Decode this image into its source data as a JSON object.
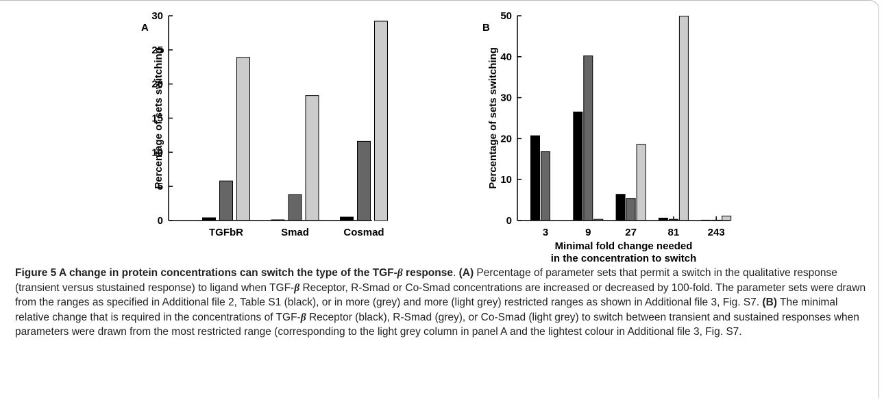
{
  "chart_data": [
    {
      "type": "bar",
      "panel": "A",
      "ylabel": "Percentage of sets switching",
      "categories": [
        "TGFbR",
        "Smad",
        "Cosmad"
      ],
      "series": [
        {
          "color": "#000000",
          "values": [
            0.4,
            0.1,
            0.5
          ]
        },
        {
          "color": "#666666",
          "values": [
            5.8,
            3.8,
            11.6
          ]
        },
        {
          "color": "#cccccc",
          "values": [
            23.9,
            18.3,
            29.2
          ]
        }
      ],
      "ylim": [
        0,
        30
      ],
      "yticks": [
        0,
        5,
        10,
        15,
        20,
        25,
        30
      ]
    },
    {
      "type": "bar",
      "panel": "B",
      "ylabel": "Percentage of sets switching",
      "xlabel": [
        "Minimal fold change needed",
        "in the concentration to switch"
      ],
      "categories": [
        "3",
        "9",
        "27",
        "81",
        "243"
      ],
      "series": [
        {
          "color": "#000000",
          "values": [
            20.7,
            26.5,
            6.4,
            0.6,
            0.1
          ]
        },
        {
          "color": "#666666",
          "values": [
            16.8,
            40.2,
            5.4,
            0.3,
            0.1
          ]
        },
        {
          "color": "#cccccc",
          "values": [
            0,
            0.3,
            18.6,
            49.9,
            1.1
          ]
        }
      ],
      "ylim": [
        0,
        50
      ],
      "yticks": [
        0,
        10,
        20,
        30,
        40,
        50
      ]
    }
  ],
  "caption": [
    "Figure 5 A change in protein concentrations can switch the type of the TGF-",
    "β",
    " response",
    ". ",
    "(A)",
    " Percentage of parameter sets that permit a switch in the qualitative response (transient versus stustained response) to ligand when TGF-",
    "β",
    " Receptor, R-Smad or Co-Smad concentrations are increased or decreased by 100-fold. The parameter sets were drawn from the ranges as specified in Additional file 2, Table S1 (black), or in more (grey) and more (light grey) restricted ranges as shown in Additional file 3, Fig. S7. ",
    "(B)",
    " The minimal relative change that is required in the concentrations of TGF-",
    "β",
    " Receptor (black), R-Smad (grey), or Co-Smad (light grey) to switch between transient and sustained responses when parameters were drawn from the most restricted range (corresponding to the light grey column in panel A and the lightest colour in Additional file 3, Fig. S7."
  ]
}
